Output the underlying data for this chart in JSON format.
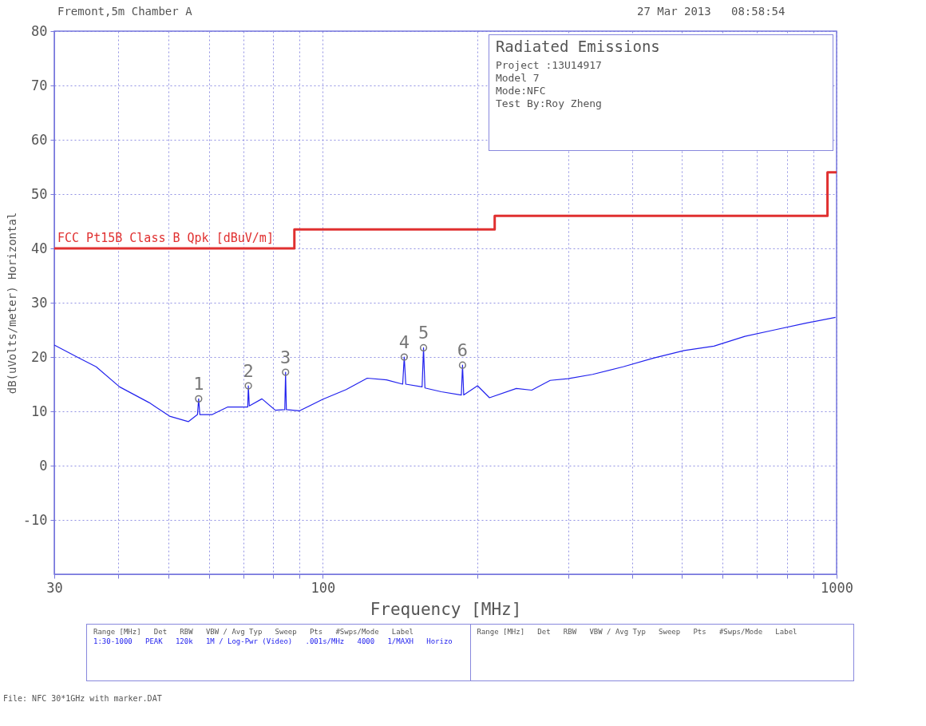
{
  "chart_data": {
    "type": "line",
    "title": "Radiated Emissions",
    "xlabel": "Frequency [MHz]",
    "ylabel": "dB(uVolts/meter) Horizontal",
    "log": "x",
    "grid": true,
    "xlim": [
      30,
      1000
    ],
    "ylim": [
      -20,
      80
    ],
    "xticks": [
      30,
      {
        "value": 40,
        "label": null
      },
      {
        "value": 50,
        "label": null
      },
      {
        "value": 60,
        "label": null
      },
      {
        "value": 70,
        "label": null
      },
      {
        "value": 80,
        "label": null
      },
      {
        "value": 90,
        "label": null
      },
      100,
      {
        "value": 200,
        "label": null
      },
      {
        "value": 300,
        "label": null
      },
      {
        "value": 400,
        "label": null
      },
      {
        "value": 500,
        "label": null
      },
      {
        "value": 600,
        "label": null
      },
      {
        "value": 700,
        "label": null
      },
      {
        "value": 800,
        "label": null
      },
      {
        "value": 900,
        "label": null
      },
      1000
    ],
    "yticks": [
      -10,
      0,
      10,
      20,
      30,
      40,
      50,
      60,
      70,
      80
    ],
    "series": [
      {
        "type": "line",
        "color": "#2222ee",
        "x": [
          30,
          33.4,
          36.2,
          40.2,
          45.9,
          50.3,
          54.7,
          57.0,
          57.3,
          57.6,
          60.9,
          65.3,
          70.1,
          71.4,
          71.6,
          71.9,
          76.1,
          80.8,
          84.3,
          84.6,
          84.9,
          90.1,
          99.9,
          111,
          122,
          133,
          143,
          144,
          145,
          156,
          157,
          158,
          170,
          186,
          187,
          188,
          200,
          211,
          238,
          255,
          277,
          300,
          335,
          384,
          440,
          505,
          577,
          663,
          758,
          867,
          995
        ],
        "values": [
          22.2,
          19.9,
          18.2,
          14.5,
          11.6,
          9.1,
          8.1,
          9.4,
          12.3,
          9.4,
          9.4,
          10.8,
          10.8,
          10.8,
          14.7,
          11.0,
          12.3,
          10.2,
          10.3,
          17.2,
          10.3,
          10.1,
          12.2,
          14.0,
          16.1,
          15.8,
          15.0,
          20.0,
          15.0,
          14.5,
          21.7,
          14.3,
          13.6,
          13.0,
          18.5,
          13.0,
          14.7,
          12.5,
          14.2,
          13.9,
          15.7,
          16.0,
          16.8,
          18.2,
          19.8,
          21.2,
          22.0,
          23.8,
          25.0,
          26.2,
          27.3
        ]
      },
      {
        "type": "line",
        "name": "FCC Pt15B Class B Qpk [dBuV/m]",
        "color": "#e03030",
        "x": [
          30,
          88,
          88,
          216,
          216,
          960,
          960,
          1000
        ],
        "values": [
          40,
          40,
          43.5,
          43.5,
          46,
          46,
          54,
          54
        ]
      },
      {
        "type": "scatter",
        "marker": "circle",
        "color": "#777777",
        "x": [
          57.3,
          71.6,
          84.6,
          144,
          157,
          187
        ],
        "values": [
          12.3,
          14.7,
          17.2,
          20.0,
          21.7,
          18.5
        ]
      }
    ],
    "annotations": [
      "Fremont,5m Chamber A",
      "27 Mar 2013   08:58:54",
      "Project :13U14917",
      "Model 7",
      "Mode:NFC",
      "Test By:Roy Zheng",
      "Range [MHz]   Det   RBW   VBW / Avg Typ   Sweep   Pts   #Swps/Mode   Label",
      "1:30-1000   PEAK   120k   1M / Log-Pwr (Video)   .001s/MHz   4000   1/MAXH   Horizo",
      "Range [MHz]   Det   RBW   VBW / Avg Typ   Sweep   Pts   #Swps/Mode   Label",
      "File: NFC 30*1GHz with marker.DAT",
      {
        "text": "1",
        "x": 57.3,
        "y": 12.3
      },
      {
        "text": "2",
        "x": 71.6,
        "y": 14.7
      },
      {
        "text": "3",
        "x": 84.6,
        "y": 17.2
      },
      {
        "text": "4",
        "x": 144,
        "y": 20.0
      },
      {
        "text": "5",
        "x": 157,
        "y": 21.7
      },
      {
        "text": "6",
        "x": 187,
        "y": 18.5
      }
    ]
  }
}
